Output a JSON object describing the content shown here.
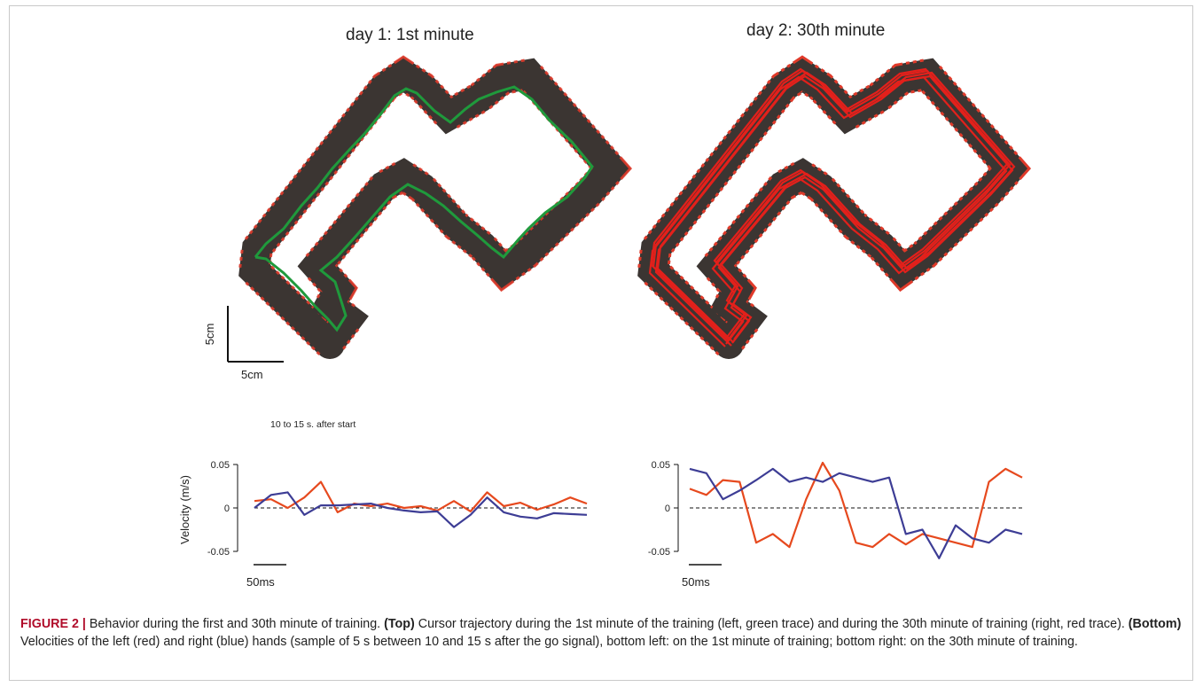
{
  "figure": {
    "top_left_title": "day 1: 1st minute",
    "top_right_title": "day 2: 30th minute",
    "scale_bar_vertical": "5cm",
    "scale_bar_horizontal": "5cm",
    "window_note": "10 to 15 s. after start"
  },
  "colors": {
    "track": "#3b3532",
    "track_border": "#e03a2a",
    "day1_trace": "#1f9a3c",
    "day2_trace": "#e3201b",
    "left_hand": "#e6491e",
    "right_hand": "#3d3d95"
  },
  "chart_data": [
    {
      "type": "line",
      "panel": "bottom-left",
      "ylabel": "Velocity (m/s)",
      "ylim": [
        -0.05,
        0.05
      ],
      "yticks": [
        "0.05",
        "0",
        "-0.05"
      ],
      "time_scale_bar": "50ms",
      "zero_line": "dashed",
      "series": [
        {
          "x": [
            0,
            0.25,
            0.5,
            0.75,
            1,
            1.25,
            1.5,
            1.75,
            2,
            2.25,
            2.5,
            2.75,
            3,
            3.25,
            3.5,
            3.75,
            4,
            4.25,
            4.5,
            4.75,
            5
          ],
          "values": [
            0.008,
            0.01,
            0.0,
            0.012,
            0.03,
            -0.005,
            0.005,
            0.002,
            0.005,
            0.0,
            0.002,
            -0.003,
            0.008,
            -0.004,
            0.018,
            0.002,
            0.006,
            -0.002,
            0.004,
            0.012,
            0.005
          ]
        },
        {
          "x": [
            0,
            0.25,
            0.5,
            0.75,
            1,
            1.25,
            1.5,
            1.75,
            2,
            2.25,
            2.5,
            2.75,
            3,
            3.25,
            3.5,
            3.75,
            4,
            4.25,
            4.5,
            4.75,
            5
          ],
          "values": [
            0.0,
            0.015,
            0.018,
            -0.008,
            0.003,
            0.003,
            0.004,
            0.005,
            0.0,
            -0.003,
            -0.005,
            -0.004,
            -0.022,
            -0.008,
            0.012,
            -0.005,
            -0.01,
            -0.012,
            -0.006,
            -0.007,
            -0.008
          ]
        }
      ]
    },
    {
      "type": "line",
      "panel": "bottom-right",
      "ylim": [
        -0.05,
        0.05
      ],
      "yticks": [
        "0.05",
        "0",
        "-0.05"
      ],
      "time_scale_bar": "50ms",
      "zero_line": "dashed",
      "series": [
        {
          "x": [
            0,
            0.25,
            0.5,
            0.75,
            1,
            1.25,
            1.5,
            1.75,
            2,
            2.25,
            2.5,
            2.75,
            3,
            3.25,
            3.5,
            3.75,
            4,
            4.25,
            4.5,
            4.75,
            5
          ],
          "values": [
            0.022,
            0.015,
            0.032,
            0.03,
            -0.04,
            -0.03,
            -0.045,
            0.01,
            0.052,
            0.02,
            -0.04,
            -0.045,
            -0.03,
            -0.042,
            -0.03,
            -0.035,
            -0.04,
            -0.045,
            0.03,
            0.045,
            0.035
          ]
        },
        {
          "x": [
            0,
            0.25,
            0.5,
            0.75,
            1,
            1.25,
            1.5,
            1.75,
            2,
            2.25,
            2.5,
            2.75,
            3,
            3.25,
            3.5,
            3.75,
            4,
            4.25,
            4.5,
            4.75,
            5
          ],
          "values": [
            0.045,
            0.04,
            0.01,
            0.02,
            0.032,
            0.045,
            0.03,
            0.035,
            0.03,
            0.04,
            0.035,
            0.03,
            0.035,
            -0.03,
            -0.025,
            -0.058,
            -0.02,
            -0.035,
            -0.04,
            -0.025,
            -0.03
          ]
        }
      ]
    }
  ],
  "caption": {
    "label": "FIGURE 2 |",
    "intro": " Behavior during the first and 30th minute of training. ",
    "top_label": "(Top)",
    "top_text": " Cursor trajectory during the 1st minute of the training (left, green trace) and during the 30th minute of training (right, red trace). ",
    "bottom_label": "(Bottom)",
    "bottom_text": " Velocities of the left (red) and right (blue) hands (sample of 5 s between 10 and 15 s after the go signal), bottom left: on the 1st minute of training; bottom right: on the 30th minute of training."
  }
}
